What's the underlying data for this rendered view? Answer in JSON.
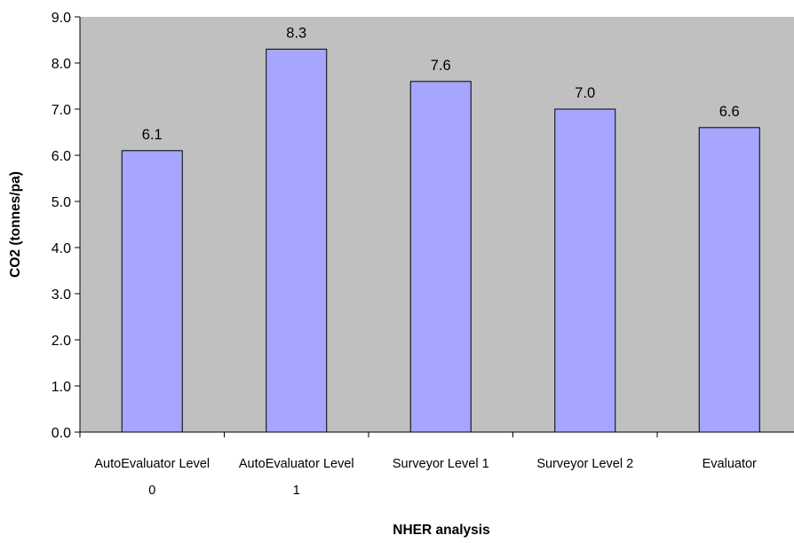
{
  "chart_data": {
    "type": "bar",
    "title": "",
    "xlabel": "NHER analysis",
    "ylabel": "CO2 (tonnes/pa)",
    "ylim": [
      0,
      9
    ],
    "yticks": [
      "0.0",
      "1.0",
      "2.0",
      "3.0",
      "4.0",
      "5.0",
      "6.0",
      "7.0",
      "8.0",
      "9.0"
    ],
    "categories": [
      [
        "AutoEvaluator Level",
        "0"
      ],
      [
        "AutoEvaluator Level",
        "1"
      ],
      [
        "Surveyor Level 1"
      ],
      [
        "Surveyor Level 2"
      ],
      [
        "Evaluator"
      ]
    ],
    "values": [
      6.1,
      8.3,
      7.6,
      7.0,
      6.6
    ],
    "value_labels": [
      "6.1",
      "8.3",
      "7.6",
      "7.0",
      "6.6"
    ],
    "grid": false,
    "legend": "none",
    "colors": {
      "plot_background": "#c0c0c0",
      "bar_fill": "#a6a6ff",
      "bar_stroke": "#000000"
    }
  }
}
